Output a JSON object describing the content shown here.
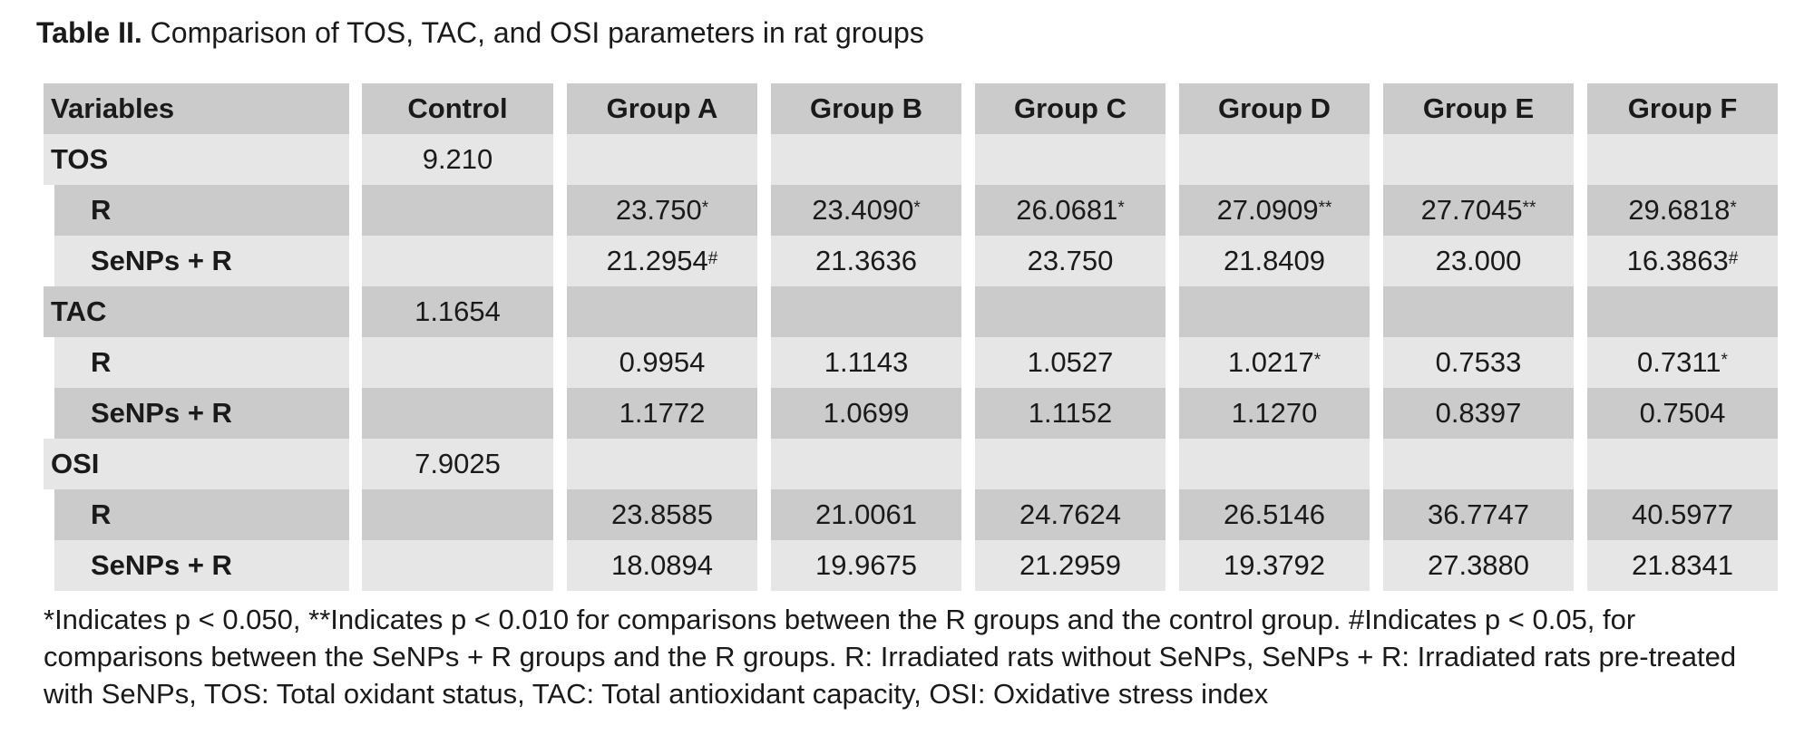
{
  "caption": {
    "label": "Table II.",
    "text": " Comparison of TOS, TAC, and OSI parameters in rat groups"
  },
  "table": {
    "headers": [
      "Variables",
      "Control",
      "Group A",
      "Group B",
      "Group C",
      "Group D",
      "Group E",
      "Group F"
    ],
    "rows": [
      {
        "label": "TOS",
        "sub": false,
        "control": "9.210",
        "values": [
          "",
          "",
          "",
          "",
          "",
          ""
        ],
        "marks": [
          "",
          "",
          "",
          "",
          "",
          ""
        ]
      },
      {
        "label": "R",
        "sub": true,
        "control": "",
        "values": [
          "23.750",
          "23.4090",
          "26.0681",
          "27.0909",
          "27.7045",
          "29.6818"
        ],
        "marks": [
          "*",
          "*",
          "*",
          "**",
          "**",
          "*"
        ]
      },
      {
        "label": "SeNPs + R",
        "sub": true,
        "control": "",
        "values": [
          "21.2954",
          "21.3636",
          "23.750",
          "21.8409",
          "23.000",
          "16.3863"
        ],
        "marks": [
          "#",
          "",
          "",
          "",
          "",
          "#"
        ]
      },
      {
        "label": "TAC",
        "sub": false,
        "control": "1.1654",
        "values": [
          "",
          "",
          "",
          "",
          "",
          ""
        ],
        "marks": [
          "",
          "",
          "",
          "",
          "",
          ""
        ]
      },
      {
        "label": "R",
        "sub": true,
        "control": "",
        "values": [
          "0.9954",
          "1.1143",
          "1.0527",
          "1.0217",
          "0.7533",
          "0.7311"
        ],
        "marks": [
          "",
          "",
          "",
          "*",
          "",
          "*"
        ]
      },
      {
        "label": "SeNPs + R",
        "sub": true,
        "control": "",
        "values": [
          "1.1772",
          "1.0699",
          "1.1152",
          "1.1270",
          "0.8397",
          "0.7504"
        ],
        "marks": [
          "",
          "",
          "",
          "",
          "",
          ""
        ]
      },
      {
        "label": "OSI",
        "sub": false,
        "control": "7.9025",
        "values": [
          "",
          "",
          "",
          "",
          "",
          ""
        ],
        "marks": [
          "",
          "",
          "",
          "",
          "",
          ""
        ]
      },
      {
        "label": "R",
        "sub": true,
        "control": "",
        "values": [
          "23.8585",
          "21.0061",
          "24.7624",
          "26.5146",
          "36.7747",
          "40.5977"
        ],
        "marks": [
          "",
          "",
          "",
          "",
          "",
          ""
        ]
      },
      {
        "label": "SeNPs + R",
        "sub": true,
        "control": "",
        "values": [
          "18.0894",
          "19.9675",
          "21.2959",
          "19.3792",
          "27.3880",
          "21.8341"
        ],
        "marks": [
          "",
          "",
          "",
          "",
          "",
          ""
        ]
      }
    ]
  },
  "footnote": "*Indicates p < 0.050, **Indicates p < 0.010 for comparisons between the R groups and the control group. #Indicates p < 0.05, for comparisons between the SeNPs + R groups and the R groups. R: Irradiated rats without SeNPs, SeNPs + R: Irradiated rats pre-treated with SeNPs, TOS: Total oxidant status, TAC: Total antioxidant capacity, OSI: Oxidative stress index"
}
